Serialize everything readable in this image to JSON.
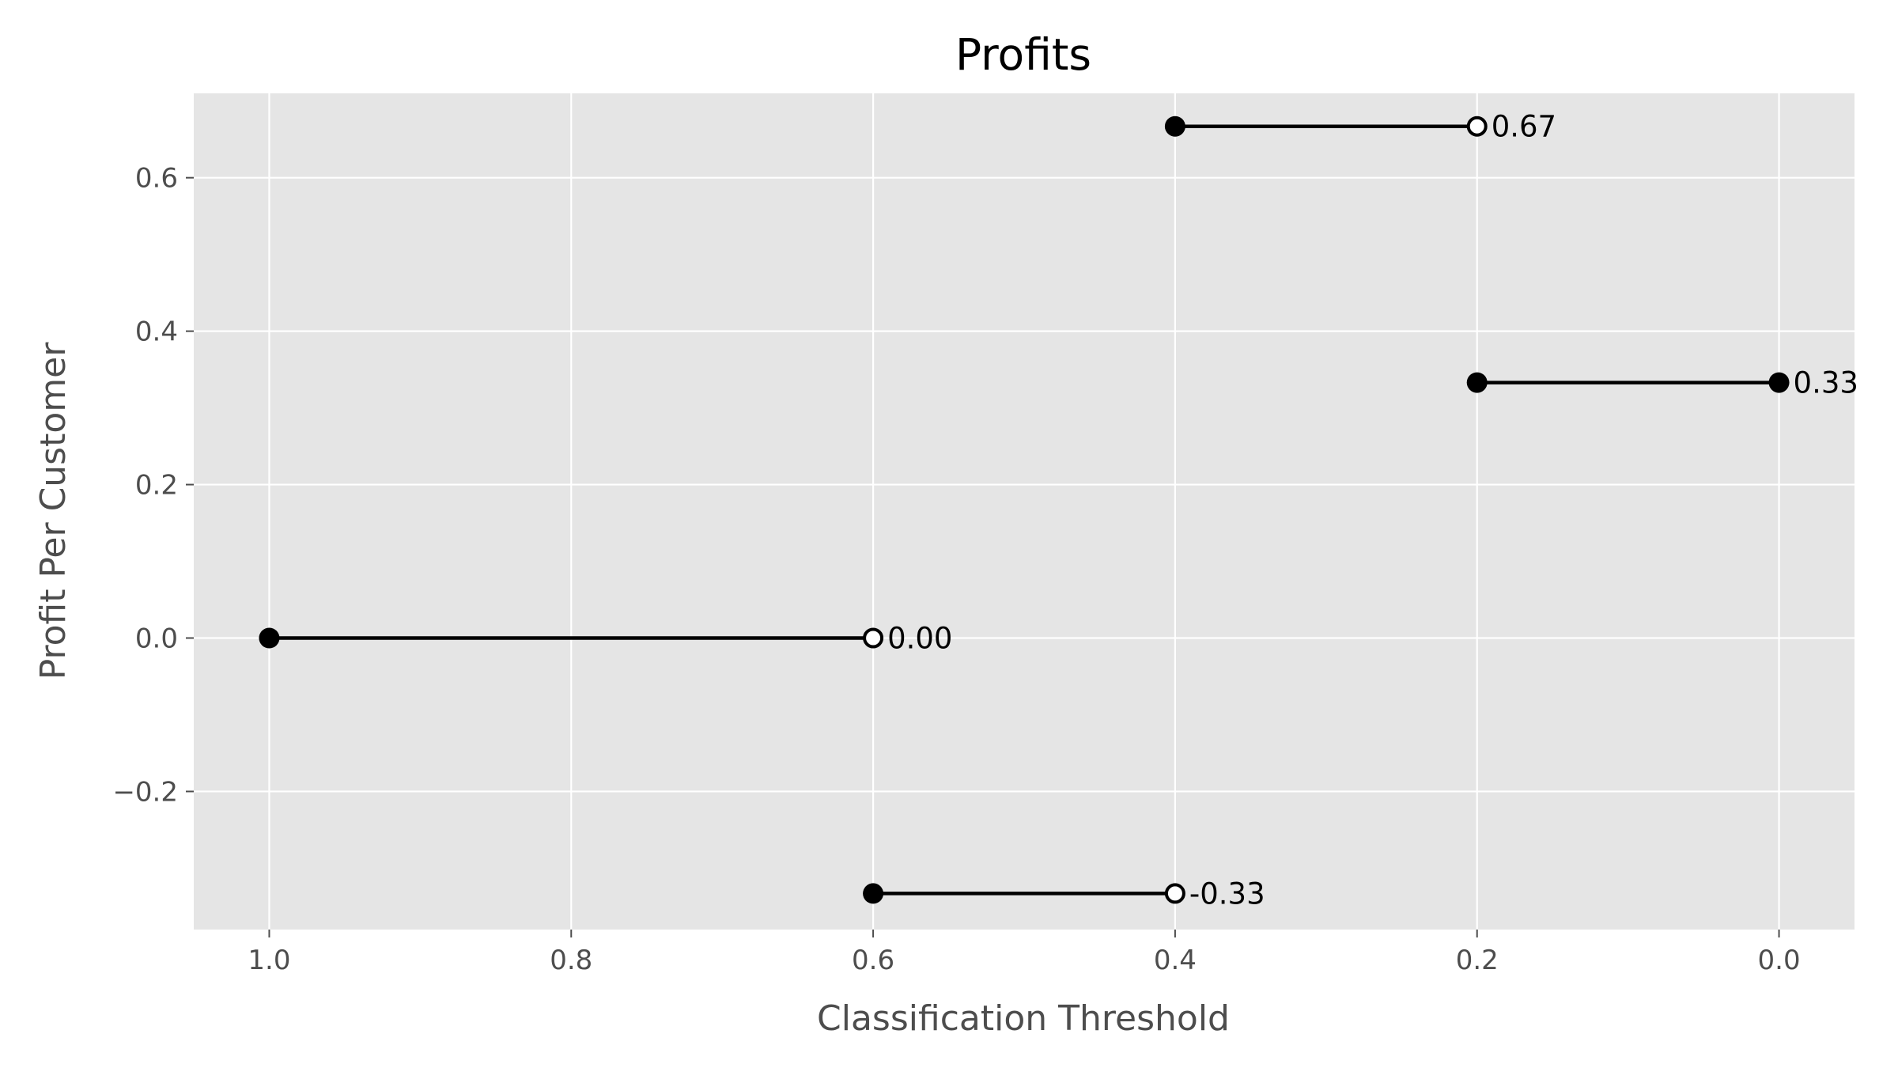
{
  "chart_data": {
    "type": "line",
    "title": "Profits",
    "xlabel": "Classification Threshold",
    "ylabel": "Profit Per Customer",
    "xlim": [
      1.05,
      -0.05
    ],
    "ylim": [
      -0.38,
      0.71
    ],
    "x_inverted": true,
    "grid": true,
    "x_ticks": [
      1.0,
      0.8,
      0.6,
      0.4,
      0.2,
      0.0
    ],
    "x_tick_labels": [
      "1.0",
      "0.8",
      "0.6",
      "0.4",
      "0.2",
      "0.0"
    ],
    "y_ticks": [
      -0.2,
      0.0,
      0.2,
      0.4,
      0.6
    ],
    "y_tick_labels": [
      "−0.2",
      "0.0",
      "0.2",
      "0.4",
      "0.6"
    ],
    "segments": [
      {
        "x_start": 1.0,
        "x_end": 0.6,
        "y": 0.0,
        "end_marker": "open",
        "label": "0.00"
      },
      {
        "x_start": 0.6,
        "x_end": 0.4,
        "y": -0.333,
        "end_marker": "open",
        "label": "-0.33"
      },
      {
        "x_start": 0.4,
        "x_end": 0.2,
        "y": 0.667,
        "end_marker": "open",
        "label": "0.67"
      },
      {
        "x_start": 0.2,
        "x_end": 0.0,
        "y": 0.333,
        "end_marker": "filled",
        "label": "0.33"
      }
    ],
    "colors": {
      "plot_background": "#e5e5e5",
      "grid": "#ffffff",
      "line": "#000000",
      "marker": "#000000"
    }
  }
}
